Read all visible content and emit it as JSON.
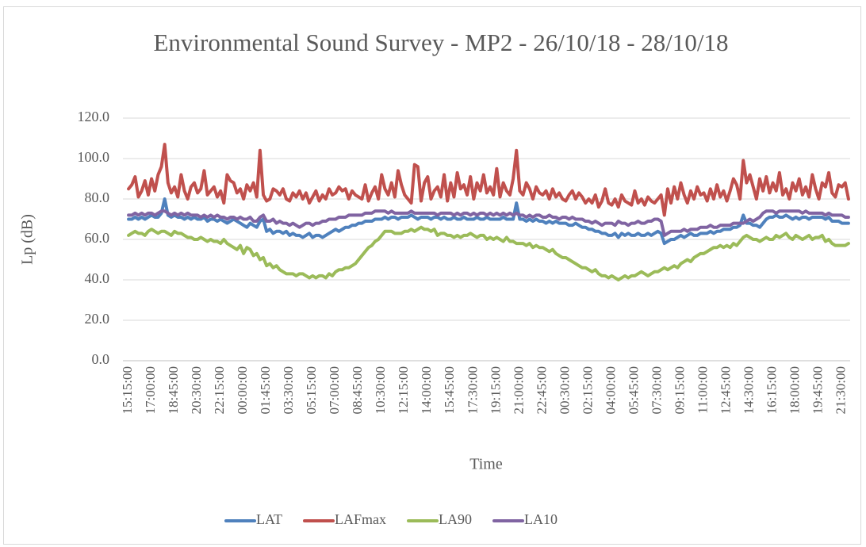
{
  "chart_data": {
    "type": "line",
    "title": "Environmental Sound Survey - MP2 - 26/10/18 - 28/10/18",
    "xlabel": "Time",
    "ylabel": "Lp (dB)",
    "ylim": [
      0,
      120
    ],
    "yticks": [
      {
        "value": 0,
        "label": "0.0"
      },
      {
        "value": 20,
        "label": "20.0"
      },
      {
        "value": 40,
        "label": "40.0"
      },
      {
        "value": 60,
        "label": "60.0"
      },
      {
        "value": 80,
        "label": "80.0"
      },
      {
        "value": 100,
        "label": "100.0"
      },
      {
        "value": 120,
        "label": "120.0"
      }
    ],
    "grid": true,
    "legend": "bottom",
    "categories": [
      "15:15:00",
      null,
      null,
      null,
      null,
      null,
      null,
      "17:00:00",
      null,
      null,
      null,
      null,
      null,
      null,
      "18:45:00",
      null,
      null,
      null,
      null,
      null,
      null,
      "20:30:00",
      null,
      null,
      null,
      null,
      null,
      null,
      "22:15:00",
      null,
      null,
      null,
      null,
      null,
      null,
      "00:00:00",
      null,
      null,
      null,
      null,
      null,
      null,
      "01:45:00",
      null,
      null,
      null,
      null,
      null,
      null,
      "03:30:00",
      null,
      null,
      null,
      null,
      null,
      null,
      "05:15:00",
      null,
      null,
      null,
      null,
      null,
      null,
      "07:00:00",
      null,
      null,
      null,
      null,
      null,
      null,
      "08:45:00",
      null,
      null,
      null,
      null,
      null,
      null,
      "10:30:00",
      null,
      null,
      null,
      null,
      null,
      null,
      "12:15:00",
      null,
      null,
      null,
      null,
      null,
      null,
      "14:00:00",
      null,
      null,
      null,
      null,
      null,
      null,
      "15:45:00",
      null,
      null,
      null,
      null,
      null,
      null,
      "17:30:00",
      null,
      null,
      null,
      null,
      null,
      null,
      "19:15:00",
      null,
      null,
      null,
      null,
      null,
      null,
      "21:00:00",
      null,
      null,
      null,
      null,
      null,
      null,
      "22:45:00",
      null,
      null,
      null,
      null,
      null,
      null,
      "00:30:00",
      null,
      null,
      null,
      null,
      null,
      null,
      "02:15:00",
      null,
      null,
      null,
      null,
      null,
      null,
      "04:00:00",
      null,
      null,
      null,
      null,
      null,
      null,
      "05:45:00",
      null,
      null,
      null,
      null,
      null,
      null,
      "07:30:00",
      null,
      null,
      null,
      null,
      null,
      null,
      "09:15:00",
      null,
      null,
      null,
      null,
      null,
      null,
      "11:00:00",
      null,
      null,
      null,
      null,
      null,
      null,
      "12:45:00",
      null,
      null,
      null,
      null,
      null,
      null,
      "14:30:00",
      null,
      null,
      null,
      null,
      null,
      null,
      "16:15:00",
      null,
      null,
      null,
      null,
      null,
      null,
      "18:00:00",
      null,
      null,
      null,
      null,
      null,
      null,
      "19:45:00",
      null,
      null,
      null,
      null,
      null,
      null,
      "21:30:00",
      null,
      null
    ],
    "series": [
      {
        "name": "LAT",
        "color": "#4f81bd",
        "values": [
          70,
          70,
          71,
          70,
          71,
          70,
          71,
          72,
          71,
          71,
          73,
          80,
          72,
          71,
          72,
          71,
          71,
          70,
          71,
          70,
          71,
          70,
          70,
          71,
          69,
          70,
          70,
          69,
          70,
          69,
          68,
          69,
          70,
          69,
          68,
          67,
          66,
          68,
          67,
          66,
          69,
          70,
          64,
          65,
          63,
          64,
          64,
          63,
          64,
          62,
          63,
          62,
          62,
          61,
          62,
          63,
          61,
          62,
          62,
          61,
          62,
          63,
          64,
          65,
          64,
          65,
          66,
          66,
          67,
          67,
          68,
          68,
          69,
          69,
          69,
          70,
          70,
          70,
          71,
          70,
          71,
          71,
          70,
          71,
          71,
          71,
          72,
          71,
          70,
          71,
          71,
          71,
          70,
          71,
          71,
          70,
          71,
          70,
          70,
          71,
          70,
          70,
          71,
          70,
          70,
          70,
          71,
          70,
          70,
          71,
          70,
          70,
          70,
          70,
          71,
          70,
          70,
          70,
          78,
          70,
          70,
          69,
          70,
          69,
          70,
          69,
          69,
          68,
          69,
          68,
          69,
          68,
          68,
          68,
          67,
          67,
          68,
          67,
          66,
          66,
          65,
          65,
          64,
          64,
          63,
          63,
          62,
          62,
          63,
          61,
          63,
          62,
          63,
          62,
          62,
          63,
          62,
          62,
          63,
          62,
          63,
          64,
          63,
          58,
          59,
          60,
          60,
          61,
          62,
          61,
          62,
          63,
          62,
          62,
          63,
          63,
          63,
          64,
          63,
          64,
          64,
          65,
          65,
          65,
          66,
          66,
          67,
          72,
          68,
          68,
          67,
          67,
          66,
          68,
          70,
          71,
          71,
          72,
          71,
          71,
          72,
          71,
          70,
          71,
          70,
          71,
          71,
          70,
          71,
          71,
          71,
          71,
          70,
          71,
          69,
          69,
          69,
          68,
          68,
          68
        ]
      },
      {
        "name": "LAFmax",
        "color": "#c0504d",
        "values": [
          85,
          87,
          91,
          81,
          84,
          89,
          82,
          90,
          84,
          92,
          96,
          107,
          88,
          83,
          86,
          81,
          92,
          84,
          80,
          86,
          88,
          83,
          85,
          94,
          82,
          84,
          86,
          81,
          84,
          78,
          92,
          89,
          88,
          83,
          85,
          80,
          87,
          84,
          88,
          81,
          104,
          82,
          79,
          80,
          85,
          84,
          82,
          85,
          80,
          79,
          83,
          81,
          84,
          80,
          83,
          78,
          81,
          84,
          79,
          82,
          80,
          85,
          82,
          83,
          86,
          84,
          85,
          80,
          84,
          82,
          81,
          80,
          87,
          79,
          83,
          86,
          80,
          92,
          85,
          82,
          88,
          81,
          94,
          87,
          82,
          80,
          78,
          97,
          96,
          79,
          88,
          91,
          80,
          84,
          86,
          81,
          92,
          79,
          88,
          81,
          93,
          85,
          87,
          82,
          91,
          80,
          88,
          84,
          92,
          83,
          86,
          82,
          95,
          81,
          88,
          84,
          82,
          90,
          104,
          84,
          82,
          88,
          85,
          80,
          86,
          83,
          82,
          84,
          80,
          85,
          81,
          83,
          80,
          79,
          82,
          84,
          80,
          83,
          81,
          78,
          80,
          78,
          82,
          76,
          79,
          85,
          78,
          77,
          80,
          76,
          82,
          79,
          78,
          77,
          84,
          78,
          80,
          77,
          81,
          79,
          78,
          80,
          82,
          72,
          85,
          78,
          86,
          80,
          88,
          82,
          78,
          84,
          80,
          86,
          82,
          83,
          79,
          85,
          80,
          87,
          81,
          84,
          79,
          84,
          90,
          87,
          80,
          99,
          88,
          92,
          86,
          80,
          90,
          84,
          91,
          83,
          88,
          84,
          93,
          82,
          85,
          80,
          88,
          84,
          90,
          82,
          86,
          81,
          92,
          85,
          80,
          88,
          86,
          93,
          83,
          81,
          87,
          86,
          88,
          80
        ]
      },
      {
        "name": "LA90",
        "color": "#9bbb59",
        "values": [
          62,
          63,
          64,
          63,
          63,
          62,
          64,
          65,
          64,
          63,
          64,
          64,
          63,
          62,
          64,
          63,
          63,
          62,
          61,
          61,
          60,
          60,
          61,
          60,
          59,
          60,
          59,
          59,
          58,
          60,
          58,
          57,
          56,
          55,
          57,
          53,
          56,
          55,
          52,
          53,
          50,
          51,
          47,
          48,
          46,
          47,
          45,
          44,
          43,
          43,
          43,
          42,
          43,
          43,
          42,
          41,
          42,
          41,
          42,
          42,
          41,
          43,
          42,
          44,
          45,
          45,
          46,
          46,
          47,
          48,
          50,
          52,
          54,
          56,
          57,
          59,
          60,
          62,
          64,
          64,
          64,
          63,
          63,
          63,
          64,
          64,
          65,
          64,
          65,
          66,
          65,
          65,
          64,
          65,
          62,
          63,
          63,
          62,
          62,
          61,
          62,
          61,
          62,
          62,
          63,
          62,
          61,
          62,
          62,
          60,
          61,
          60,
          61,
          60,
          59,
          61,
          59,
          59,
          58,
          58,
          58,
          57,
          58,
          56,
          57,
          56,
          56,
          55,
          54,
          55,
          53,
          52,
          51,
          51,
          50,
          49,
          48,
          47,
          46,
          46,
          45,
          44,
          45,
          43,
          42,
          42,
          41,
          42,
          41,
          40,
          41,
          42,
          41,
          42,
          42,
          43,
          44,
          43,
          42,
          43,
          44,
          44,
          45,
          46,
          45,
          46,
          47,
          46,
          48,
          49,
          50,
          49,
          51,
          52,
          53,
          53,
          54,
          55,
          56,
          56,
          57,
          56,
          57,
          56,
          58,
          57,
          59,
          61,
          62,
          61,
          60,
          60,
          59,
          60,
          61,
          60,
          60,
          62,
          61,
          62,
          63,
          61,
          60,
          62,
          61,
          60,
          61,
          62,
          60,
          61,
          61,
          62,
          59,
          60,
          58,
          57,
          57,
          57,
          57,
          58
        ]
      },
      {
        "name": "LA10",
        "color": "#8064a2",
        "values": [
          72,
          72,
          73,
          72,
          73,
          72,
          73,
          73,
          72,
          73,
          74,
          74,
          73,
          72,
          73,
          72,
          73,
          72,
          73,
          72,
          72,
          72,
          71,
          72,
          71,
          72,
          71,
          72,
          71,
          71,
          70,
          71,
          71,
          70,
          71,
          70,
          70,
          71,
          69,
          69,
          71,
          72,
          69,
          69,
          70,
          68,
          69,
          68,
          68,
          67,
          68,
          67,
          66,
          67,
          68,
          68,
          67,
          68,
          68,
          69,
          69,
          70,
          70,
          70,
          71,
          71,
          71,
          72,
          72,
          72,
          72,
          72,
          73,
          73,
          73,
          74,
          74,
          74,
          74,
          73,
          74,
          73,
          73,
          73,
          73,
          73,
          74,
          73,
          73,
          73,
          73,
          73,
          73,
          73,
          72,
          73,
          73,
          73,
          73,
          72,
          73,
          72,
          73,
          73,
          72,
          73,
          72,
          73,
          73,
          72,
          73,
          72,
          73,
          72,
          73,
          72,
          73,
          72,
          73,
          72,
          72,
          71,
          72,
          71,
          72,
          72,
          71,
          71,
          72,
          71,
          71,
          70,
          71,
          71,
          70,
          71,
          70,
          70,
          70,
          69,
          69,
          68,
          69,
          68,
          67,
          68,
          68,
          68,
          67,
          69,
          68,
          68,
          67,
          68,
          68,
          69,
          68,
          68,
          69,
          69,
          70,
          70,
          69,
          62,
          63,
          64,
          64,
          64,
          64,
          65,
          64,
          65,
          65,
          65,
          66,
          66,
          66,
          67,
          66,
          66,
          67,
          67,
          67,
          67,
          68,
          68,
          68,
          68,
          69,
          70,
          69,
          70,
          71,
          73,
          74,
          74,
          74,
          73,
          74,
          74,
          74,
          74,
          74,
          74,
          74,
          73,
          74,
          73,
          73,
          73,
          73,
          73,
          72,
          73,
          72,
          72,
          72,
          72,
          71,
          71
        ]
      }
    ]
  }
}
